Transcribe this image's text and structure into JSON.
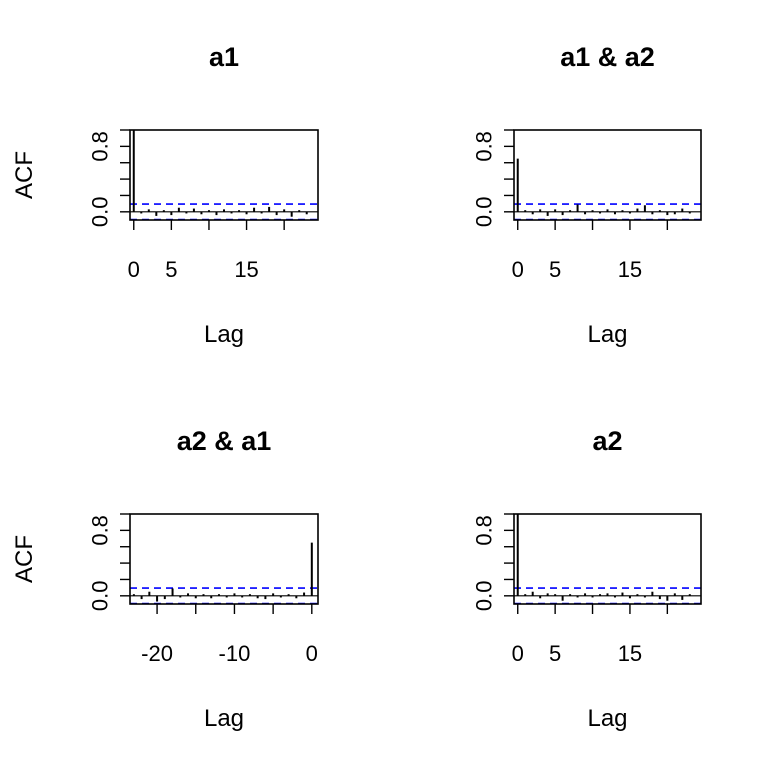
{
  "chart_data": [
    {
      "type": "bar",
      "title": "a1",
      "xlabel": "Lag",
      "ylabel": "ACF",
      "xlim": [
        -0.5,
        24.5
      ],
      "ylim": [
        -0.1,
        1.0
      ],
      "x_ticks": [
        0,
        5,
        10,
        15,
        20
      ],
      "x_tick_labels": [
        "0",
        "5",
        "",
        "15",
        ""
      ],
      "y_ticks": [
        0.0,
        0.2,
        0.4,
        0.6,
        0.8,
        1.0
      ],
      "y_tick_labels": [
        "0.0",
        "",
        "",
        "",
        "0.8",
        ""
      ],
      "conf_limit": 0.095,
      "lags": [
        0,
        1,
        2,
        3,
        4,
        5,
        6,
        7,
        8,
        9,
        10,
        11,
        12,
        13,
        14,
        15,
        16,
        17,
        18,
        19,
        20,
        21,
        22,
        23
      ],
      "values": [
        1.0,
        -0.02,
        0.03,
        -0.05,
        0.02,
        -0.04,
        0.05,
        -0.02,
        0.04,
        -0.03,
        0.02,
        -0.04,
        0.03,
        -0.02,
        0.02,
        -0.03,
        0.05,
        -0.02,
        0.06,
        -0.04,
        0.03,
        -0.06,
        0.02,
        -0.03
      ]
    },
    {
      "type": "bar",
      "title": "a1 & a2",
      "xlabel": "Lag",
      "ylabel": "",
      "xlim": [
        -0.5,
        24.5
      ],
      "ylim": [
        -0.1,
        1.0
      ],
      "x_ticks": [
        0,
        5,
        10,
        15,
        20
      ],
      "x_tick_labels": [
        "0",
        "5",
        "",
        "15",
        ""
      ],
      "y_ticks": [
        0.0,
        0.2,
        0.4,
        0.6,
        0.8,
        1.0
      ],
      "y_tick_labels": [
        "0.0",
        "",
        "",
        "",
        "0.8",
        ""
      ],
      "conf_limit": 0.095,
      "lags": [
        0,
        1,
        2,
        3,
        4,
        5,
        6,
        7,
        8,
        9,
        10,
        11,
        12,
        13,
        14,
        15,
        16,
        17,
        18,
        19,
        20,
        21,
        22,
        23
      ],
      "values": [
        0.65,
        0.02,
        -0.03,
        0.03,
        -0.05,
        0.03,
        -0.04,
        0.02,
        0.09,
        -0.03,
        0.02,
        -0.02,
        0.03,
        -0.03,
        0.02,
        -0.02,
        0.04,
        0.08,
        -0.03,
        0.02,
        -0.04,
        -0.03,
        0.04,
        -0.02
      ]
    },
    {
      "type": "bar",
      "title": "a2 & a1",
      "xlabel": "Lag",
      "ylabel": "ACF",
      "xlim": [
        -23.5,
        0.8
      ],
      "ylim": [
        -0.1,
        1.0
      ],
      "x_ticks": [
        -20,
        -15,
        -10,
        -5,
        0
      ],
      "x_tick_labels": [
        "-20",
        "",
        "-10",
        "",
        "0"
      ],
      "y_ticks": [
        0.0,
        0.2,
        0.4,
        0.6,
        0.8,
        1.0
      ],
      "y_tick_labels": [
        "0.0",
        "",
        "",
        "",
        "0.8",
        ""
      ],
      "conf_limit": 0.095,
      "lags": [
        -23,
        -22,
        -21,
        -20,
        -19,
        -18,
        -17,
        -16,
        -15,
        -14,
        -13,
        -12,
        -11,
        -10,
        -9,
        -8,
        -7,
        -6,
        -5,
        -4,
        -3,
        -2,
        -1,
        0
      ],
      "values": [
        0.02,
        -0.04,
        0.05,
        -0.07,
        -0.04,
        0.09,
        -0.02,
        0.03,
        -0.03,
        0.02,
        -0.03,
        0.02,
        -0.02,
        0.03,
        -0.02,
        0.02,
        -0.03,
        -0.04,
        0.03,
        -0.02,
        0.02,
        -0.03,
        0.04,
        0.65
      ]
    },
    {
      "type": "bar",
      "title": "a2",
      "xlabel": "Lag",
      "ylabel": "",
      "xlim": [
        -0.5,
        24.5
      ],
      "ylim": [
        -0.1,
        1.0
      ],
      "x_ticks": [
        0,
        5,
        10,
        15,
        20
      ],
      "x_tick_labels": [
        "0",
        "5",
        "",
        "15",
        ""
      ],
      "y_ticks": [
        0.0,
        0.2,
        0.4,
        0.6,
        0.8,
        1.0
      ],
      "y_tick_labels": [
        "0.0",
        "",
        "",
        "",
        "0.8",
        ""
      ],
      "conf_limit": 0.095,
      "lags": [
        0,
        1,
        2,
        3,
        4,
        5,
        6,
        7,
        8,
        9,
        10,
        11,
        12,
        13,
        14,
        15,
        16,
        17,
        18,
        19,
        20,
        21,
        22,
        23
      ],
      "values": [
        1.0,
        0.02,
        0.05,
        -0.03,
        0.03,
        0.02,
        -0.06,
        0.02,
        -0.02,
        0.03,
        -0.02,
        0.02,
        0.03,
        -0.02,
        0.04,
        -0.03,
        0.02,
        -0.02,
        0.05,
        -0.04,
        -0.06,
        0.03,
        -0.05,
        0.02
      ]
    }
  ],
  "colors": {
    "bars": "#000000",
    "conf_lines": "#0000ff",
    "axes": "#000000",
    "background": "#ffffff"
  }
}
